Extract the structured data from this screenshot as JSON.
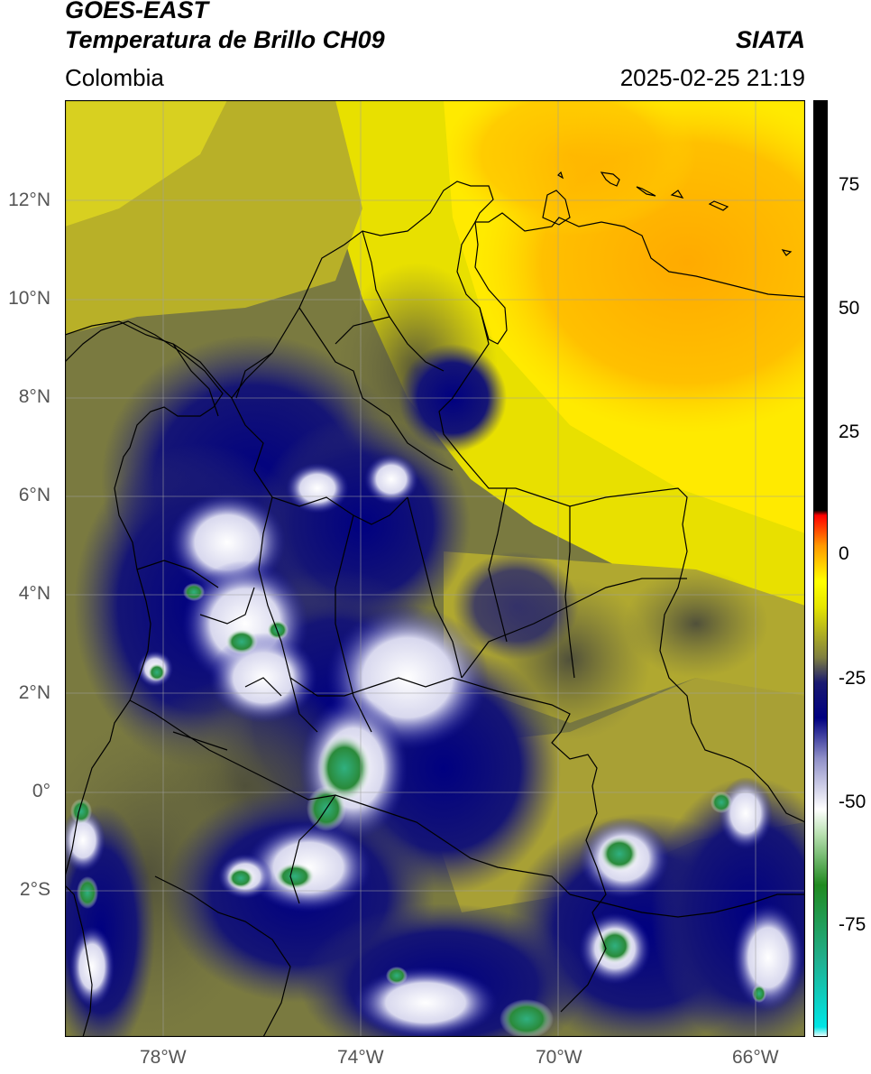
{
  "header": {
    "satellite": "GOES-EAST",
    "product": "Temperatura de Brillo CH09",
    "region": "Colombia",
    "agency": "SIATA",
    "datetime": "2025-02-25 21:19"
  },
  "map": {
    "lat_labels": [
      "12°N",
      "10°N",
      "8°N",
      "6°N",
      "4°N",
      "2°N",
      "0°",
      "2°S"
    ],
    "lon_labels": [
      "78°W",
      "74°W",
      "70°W",
      "66°W"
    ],
    "extent": {
      "lon_min": -80,
      "lon_max": -65,
      "lat_min": -5,
      "lat_max": 14
    }
  },
  "colorbar": {
    "labels": [
      "75",
      "50",
      "25",
      "0",
      "-25",
      "-50",
      "-75"
    ],
    "range": [
      -95,
      90
    ],
    "stops": [
      {
        "v": -95,
        "c": "#ffffff"
      },
      {
        "v": -93,
        "c": "#00e5e5"
      },
      {
        "v": -80,
        "c": "#20b090"
      },
      {
        "v": -65,
        "c": "#208a20"
      },
      {
        "v": -55,
        "c": "#b8e0b0"
      },
      {
        "v": -50,
        "c": "#ffffff"
      },
      {
        "v": -40,
        "c": "#9090c8"
      },
      {
        "v": -32,
        "c": "#000080"
      },
      {
        "v": -25,
        "c": "#1a1a70"
      },
      {
        "v": -20,
        "c": "#808040"
      },
      {
        "v": -10,
        "c": "#e6e600"
      },
      {
        "v": -5,
        "c": "#ffff00"
      },
      {
        "v": 2,
        "c": "#ff9900"
      },
      {
        "v": 8,
        "c": "#ff0000"
      },
      {
        "v": 9,
        "c": "#000000"
      },
      {
        "v": 90,
        "c": "#000000"
      }
    ]
  }
}
